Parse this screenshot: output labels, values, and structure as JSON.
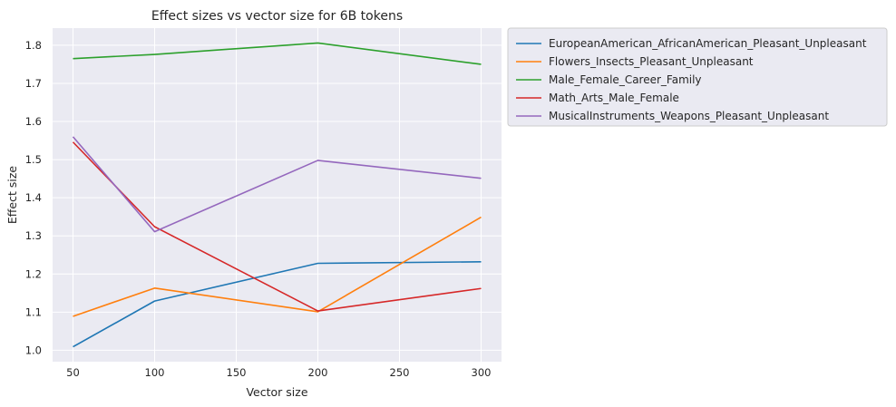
{
  "chart_data": {
    "type": "line",
    "title": "Effect sizes vs vector size for 6B tokens",
    "xlabel": "Vector size",
    "ylabel": "Effect size",
    "x": [
      50,
      100,
      200,
      300
    ],
    "xlim": [
      37.5,
      312.5
    ],
    "ylim": [
      0.97,
      1.845
    ],
    "xticks": [
      50,
      100,
      150,
      200,
      250,
      300
    ],
    "yticks": [
      1.0,
      1.1,
      1.2,
      1.3,
      1.4,
      1.5,
      1.6,
      1.7,
      1.8
    ],
    "grid": true,
    "legend_position": "outside-upper-right",
    "series": [
      {
        "name": "EuropeanAmerican_AfricanAmerican_Pleasant_Unpleasant",
        "color": "#1f77b4",
        "values": [
          1.009,
          1.129,
          1.228,
          1.232
        ]
      },
      {
        "name": "Flowers_Insects_Pleasant_Unpleasant",
        "color": "#ff7f0e",
        "values": [
          1.089,
          1.163,
          1.101,
          1.349
        ]
      },
      {
        "name": "Male_Female_Career_Family",
        "color": "#2ca02c",
        "values": [
          1.765,
          1.776,
          1.806,
          1.75
        ]
      },
      {
        "name": "Math_Arts_Male_Female",
        "color": "#d62728",
        "values": [
          1.546,
          1.324,
          1.103,
          1.162
        ]
      },
      {
        "name": "MusicalInstruments_Weapons_Pleasant_Unpleasant",
        "color": "#9467bd",
        "values": [
          1.56,
          1.311,
          1.498,
          1.451
        ]
      }
    ]
  }
}
